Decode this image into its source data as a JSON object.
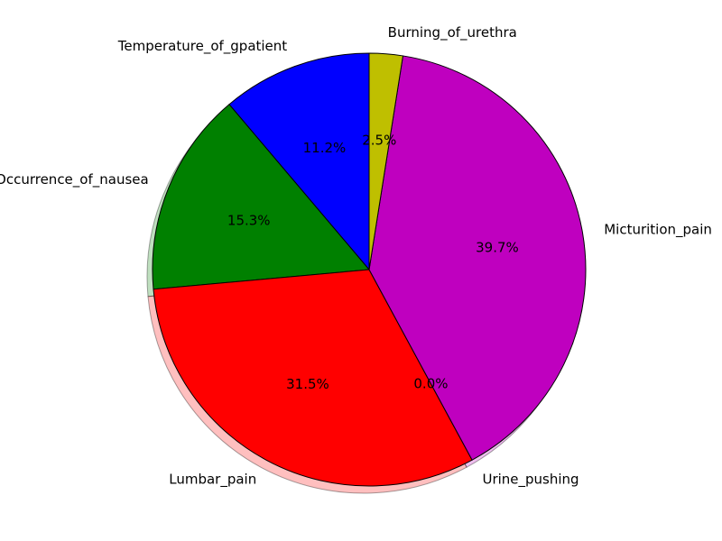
{
  "chart_data": {
    "type": "pie",
    "labels": [
      "Temperature_of_gpatient",
      "Occurrence_of_nausea",
      "Lumbar_pain",
      "Urine_pushing",
      "Micturition_pain",
      "Burning_of_urethra"
    ],
    "values": [
      11.2,
      15.3,
      31.5,
      0.0,
      39.7,
      2.5
    ],
    "value_labels": [
      "11.2%",
      "15.3%",
      "31.5%",
      "0.0%",
      "39.7%",
      "2.5%"
    ],
    "colors": [
      "#0000ff",
      "#008000",
      "#ff0000",
      "#00bfbf",
      "#bf00bf",
      "#bfbf00"
    ],
    "start_angle_deg": 90,
    "direction": "counterclockwise",
    "shadow": true,
    "title": ""
  }
}
